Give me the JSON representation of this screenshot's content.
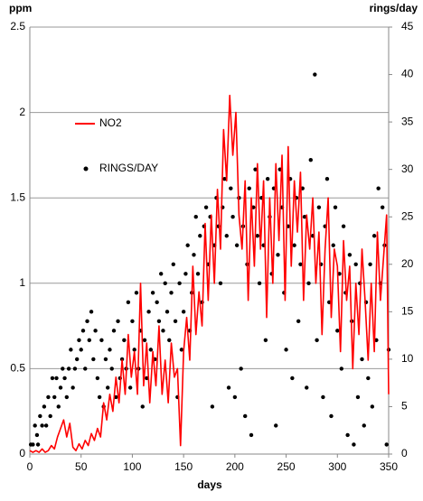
{
  "chart_data": {
    "type": "combo",
    "ylabel": "ppm",
    "y2label": "rings/day",
    "xlabel": "days",
    "xlim": [
      0,
      350
    ],
    "xticks": [
      0,
      50,
      100,
      150,
      200,
      250,
      300,
      350
    ],
    "ylim": [
      0,
      2.5
    ],
    "yticks": [
      0,
      0.5,
      1,
      1.5,
      2,
      2.5
    ],
    "y2lim": [
      0,
      45
    ],
    "y2ticks": [
      0,
      5,
      10,
      15,
      20,
      25,
      30,
      35,
      40,
      45
    ],
    "grid": true,
    "series": [
      {
        "name": "NO2",
        "type": "line",
        "color": "#ff0000",
        "x": [
          0,
          3,
          6,
          9,
          12,
          15,
          18,
          21,
          24,
          27,
          30,
          33,
          36,
          39,
          42,
          45,
          48,
          51,
          54,
          57,
          60,
          63,
          66,
          69,
          72,
          75,
          78,
          81,
          84,
          87,
          90,
          93,
          96,
          99,
          102,
          105,
          108,
          111,
          114,
          117,
          120,
          123,
          126,
          129,
          132,
          135,
          138,
          141,
          144,
          147,
          150,
          153,
          156,
          159,
          162,
          165,
          168,
          171,
          174,
          177,
          180,
          183,
          186,
          189,
          192,
          195,
          198,
          201,
          204,
          207,
          210,
          213,
          216,
          219,
          222,
          225,
          228,
          231,
          234,
          237,
          240,
          243,
          246,
          249,
          252,
          255,
          258,
          261,
          264,
          267,
          270,
          273,
          276,
          279,
          282,
          285,
          288,
          291,
          294,
          297,
          300,
          303,
          306,
          309,
          312,
          315,
          318,
          321,
          324,
          327,
          330,
          333,
          336,
          339,
          342,
          345,
          348,
          350
        ],
        "values": [
          0.02,
          0.01,
          0.02,
          0.01,
          0.03,
          0.01,
          0.02,
          0.05,
          0.03,
          0.1,
          0.15,
          0.2,
          0.1,
          0.18,
          0.04,
          0.02,
          0.06,
          0.03,
          0.08,
          0.05,
          0.12,
          0.08,
          0.15,
          0.1,
          0.3,
          0.2,
          0.35,
          0.25,
          0.45,
          0.3,
          0.55,
          0.35,
          0.7,
          0.45,
          0.6,
          0.35,
          1.0,
          0.4,
          0.65,
          0.3,
          0.6,
          0.4,
          0.75,
          0.35,
          0.55,
          0.3,
          0.65,
          0.45,
          0.5,
          0.05,
          0.6,
          0.8,
          0.55,
          1.1,
          0.7,
          0.95,
          0.75,
          1.35,
          0.9,
          1.4,
          1.0,
          1.55,
          1.2,
          1.9,
          1.6,
          2.1,
          1.75,
          2.0,
          1.4,
          1.2,
          1.6,
          0.9,
          1.5,
          1.1,
          1.7,
          1.2,
          1.6,
          0.8,
          1.5,
          1.0,
          1.7,
          1.25,
          1.75,
          0.9,
          1.8,
          1.1,
          1.6,
          1.3,
          1.65,
          0.9,
          1.4,
          1.2,
          1.5,
          1.0,
          1.3,
          0.7,
          1.2,
          1.5,
          0.8,
          1.2,
          1.1,
          0.6,
          1.25,
          0.9,
          1.1,
          0.5,
          1.0,
          0.7,
          1.2,
          0.9,
          0.55,
          1.0,
          0.6,
          1.3,
          0.9,
          1.15,
          1.4,
          0.35
        ]
      },
      {
        "name": "RINGS/DAY",
        "type": "scatter",
        "axis": "y2",
        "color": "#000000",
        "x": [
          1,
          3,
          5,
          7,
          8,
          10,
          12,
          14,
          16,
          18,
          20,
          22,
          24,
          26,
          28,
          30,
          32,
          34,
          36,
          38,
          40,
          42,
          44,
          46,
          48,
          50,
          52,
          54,
          56,
          58,
          60,
          62,
          64,
          66,
          68,
          70,
          72,
          74,
          76,
          78,
          80,
          82,
          84,
          86,
          88,
          90,
          92,
          94,
          96,
          98,
          100,
          102,
          104,
          106,
          108,
          110,
          112,
          114,
          116,
          118,
          120,
          122,
          124,
          126,
          128,
          130,
          132,
          134,
          136,
          138,
          140,
          142,
          144,
          146,
          148,
          150,
          152,
          154,
          156,
          158,
          160,
          162,
          164,
          166,
          168,
          170,
          172,
          174,
          176,
          178,
          180,
          182,
          184,
          186,
          188,
          190,
          192,
          194,
          196,
          198,
          200,
          202,
          204,
          206,
          208,
          210,
          212,
          214,
          216,
          218,
          220,
          222,
          224,
          226,
          228,
          230,
          232,
          234,
          236,
          238,
          240,
          242,
          244,
          246,
          248,
          250,
          252,
          254,
          256,
          258,
          260,
          262,
          264,
          266,
          268,
          270,
          272,
          274,
          276,
          278,
          280,
          282,
          284,
          286,
          288,
          290,
          292,
          294,
          296,
          298,
          300,
          302,
          304,
          306,
          308,
          310,
          312,
          314,
          316,
          318,
          320,
          322,
          324,
          326,
          328,
          330,
          332,
          334,
          336,
          338,
          340,
          342,
          344,
          346,
          348,
          350
        ],
        "values": [
          1,
          1,
          3,
          2,
          1,
          4,
          3,
          5,
          3,
          6,
          4,
          8,
          6,
          8,
          5,
          7,
          9,
          8,
          6,
          9,
          11,
          7,
          9,
          10,
          12,
          11,
          13,
          9,
          14,
          12,
          15,
          10,
          13,
          8,
          6,
          12,
          5,
          10,
          7,
          11,
          9,
          13,
          6,
          14,
          8,
          10,
          12,
          9,
          16,
          7,
          14,
          11,
          17,
          9,
          13,
          5,
          12,
          8,
          15,
          11,
          17,
          10,
          16,
          14,
          19,
          13,
          18,
          15,
          12,
          17,
          20,
          14,
          6,
          18,
          11,
          15,
          19,
          22,
          13,
          17,
          21,
          25,
          19,
          23,
          16,
          24,
          26,
          20,
          25,
          5,
          22,
          27,
          24,
          18,
          26,
          29,
          23,
          7,
          28,
          25,
          6,
          22,
          27,
          9,
          24,
          4,
          20,
          28,
          2,
          26,
          30,
          23,
          18,
          27,
          22,
          12,
          29,
          25,
          19,
          28,
          3,
          21,
          30,
          26,
          17,
          11,
          24,
          29,
          8,
          22,
          27,
          14,
          20,
          28,
          25,
          7,
          18,
          31,
          23,
          40,
          12,
          26,
          20,
          6,
          24,
          29,
          16,
          4,
          22,
          26,
          13,
          19,
          9,
          24,
          17,
          2,
          21,
          14,
          1,
          20,
          6,
          18,
          10,
          3,
          16,
          8,
          20,
          5,
          23,
          12,
          28,
          18,
          26,
          22,
          1,
          11
        ]
      }
    ]
  }
}
